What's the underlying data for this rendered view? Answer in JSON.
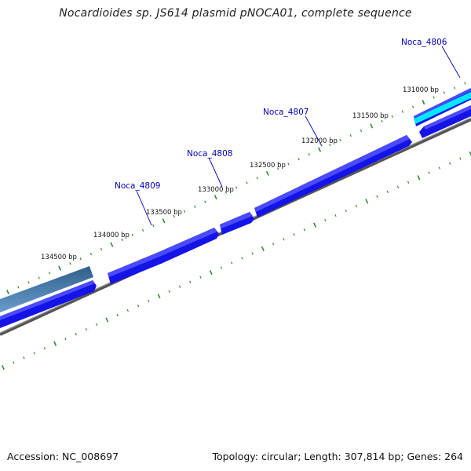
{
  "title": "Nocardioides sp. JS614 plasmid pNOCA01, complete sequence",
  "footer": {
    "accession": "Accession: NC_008697",
    "summary": "Topology: circular; Length: 307,814 bp; Genes: 264"
  },
  "colors": {
    "gene_blue": "#1414e8",
    "gene_blue_top": "#5050ff",
    "gene_cyan": "#00e8ff",
    "gene_steel": "#4a7aa8",
    "tick_green": "#2e8b2e",
    "backbone_grey": "#777777",
    "label_blue": "#0000bb"
  },
  "scale_labels": [
    "131000 bp",
    "131500 bp",
    "132000 bp",
    "132500 bp",
    "133000 bp",
    "133500 bp",
    "134000 bp",
    "134500 bp"
  ],
  "genes": [
    {
      "name": "Noca_4806"
    },
    {
      "name": "Noca_4807"
    },
    {
      "name": "Noca_4808"
    },
    {
      "name": "Noca_4809"
    }
  ]
}
